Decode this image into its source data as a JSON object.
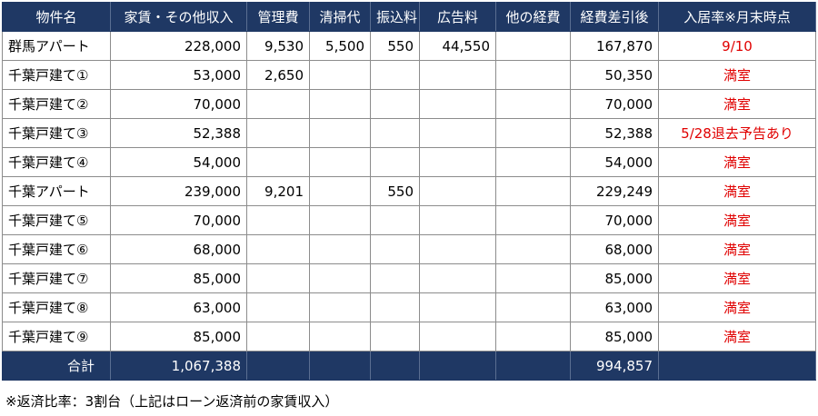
{
  "headers": [
    "物件名",
    "家賃・その他収入",
    "管理費",
    "清掃代",
    "振込料",
    "広告料",
    "他の経費",
    "経費差引後",
    "入居率※月末時点"
  ],
  "rows": [
    {
      "name": "群馬アパート",
      "income": "228,000",
      "mgmt": "9,530",
      "cleaning": "5,500",
      "transfer": "550",
      "ads": "44,550",
      "other": "",
      "net": "167,870",
      "status": "9/10"
    },
    {
      "name": "千葉戸建て①",
      "income": "53,000",
      "mgmt": "2,650",
      "cleaning": "",
      "transfer": "",
      "ads": "",
      "other": "",
      "net": "50,350",
      "status": "満室"
    },
    {
      "name": "千葉戸建て②",
      "income": "70,000",
      "mgmt": "",
      "cleaning": "",
      "transfer": "",
      "ads": "",
      "other": "",
      "net": "70,000",
      "status": "満室"
    },
    {
      "name": "千葉戸建て③",
      "income": "52,388",
      "mgmt": "",
      "cleaning": "",
      "transfer": "",
      "ads": "",
      "other": "",
      "net": "52,388",
      "status": "5/28退去予告あり"
    },
    {
      "name": "千葉戸建て④",
      "income": "54,000",
      "mgmt": "",
      "cleaning": "",
      "transfer": "",
      "ads": "",
      "other": "",
      "net": "54,000",
      "status": "満室"
    },
    {
      "name": "千葉アパート",
      "income": "239,000",
      "mgmt": "9,201",
      "cleaning": "",
      "transfer": "550",
      "ads": "",
      "other": "",
      "net": "229,249",
      "status": "満室"
    },
    {
      "name": "千葉戸建て⑤",
      "income": "70,000",
      "mgmt": "",
      "cleaning": "",
      "transfer": "",
      "ads": "",
      "other": "",
      "net": "70,000",
      "status": "満室"
    },
    {
      "name": "千葉戸建て⑥",
      "income": "68,000",
      "mgmt": "",
      "cleaning": "",
      "transfer": "",
      "ads": "",
      "other": "",
      "net": "68,000",
      "status": "満室"
    },
    {
      "name": "千葉戸建て⑦",
      "income": "85,000",
      "mgmt": "",
      "cleaning": "",
      "transfer": "",
      "ads": "",
      "other": "",
      "net": "85,000",
      "status": "満室"
    },
    {
      "name": "千葉戸建て⑧",
      "income": "63,000",
      "mgmt": "",
      "cleaning": "",
      "transfer": "",
      "ads": "",
      "other": "",
      "net": "63,000",
      "status": "満室"
    },
    {
      "name": "千葉戸建て⑨",
      "income": "85,000",
      "mgmt": "",
      "cleaning": "",
      "transfer": "",
      "ads": "",
      "other": "",
      "net": "85,000",
      "status": "満室"
    }
  ],
  "total": {
    "label": "合計",
    "income": "1,067,388",
    "net": "994,857"
  },
  "footnote": "※返済比率：3割台（上記はローン返済前の家賃収入）",
  "colors": {
    "header_bg": "#1f3864",
    "header_text": "#ffffff",
    "status_red": "#e00000"
  }
}
